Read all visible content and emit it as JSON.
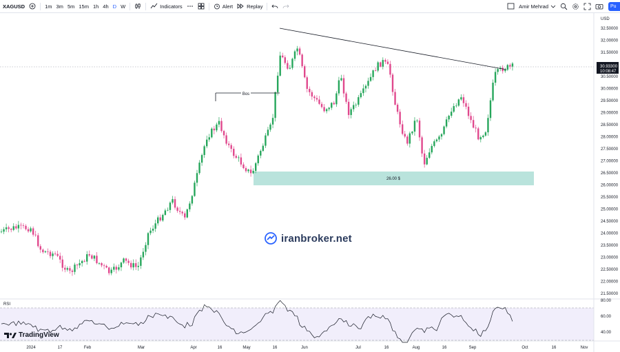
{
  "toolbar": {
    "symbol": "XAGUSD",
    "intervals": [
      "1m",
      "3m",
      "5m",
      "15m",
      "1h",
      "4h",
      "D",
      "W"
    ],
    "active_interval": "D",
    "indicators_label": "Indicators",
    "alert_label": "Alert",
    "replay_label": "Replay",
    "user_name": "Amir Mehrad",
    "publish_label": "Pu"
  },
  "chart": {
    "currency_label": "USD",
    "price_ticks": [
      "32.50000",
      "32.00000",
      "31.50000",
      "31.00000",
      "30.50000",
      "30.00000",
      "29.50000",
      "29.00000",
      "28.50000",
      "28.00000",
      "27.50000",
      "27.00000",
      "26.50000",
      "26.00000",
      "25.50000",
      "25.00000",
      "24.50000",
      "24.00000",
      "23.50000",
      "23.00000",
      "22.50000",
      "22.00000",
      "21.50000"
    ],
    "last_price": "30.93300",
    "countdown": "10:08:47",
    "support_label": "26.00 $",
    "bos_label": "Bos",
    "rsi_label": "RSI",
    "rsi_ticks": [
      "80.00",
      "60.00",
      "40.00"
    ],
    "date_labels": [
      "2024",
      "17",
      "Feb",
      "Mar",
      "Apr",
      "16",
      "May",
      "16",
      "Jun",
      "Jul",
      "16",
      "Aug",
      "16",
      "Sep",
      "Oct",
      "16",
      "Nov"
    ],
    "watermark_brand": "TradingView",
    "broker_watermark": "iranbroker.net",
    "colors": {
      "up": "#26a65b",
      "down": "#e0488d",
      "zone": "#b9e3dc",
      "rsi_line": "#131722",
      "price_badge": "#131722"
    }
  },
  "chart_data": {
    "type": "candlestick",
    "symbol": "XAGUSD",
    "timeframe": "D",
    "ylim": [
      21.5,
      32.5
    ],
    "trendline": {
      "from": 32.6,
      "to": 30.95
    },
    "support_zone": [
      26.0,
      26.55
    ],
    "bos_level": 29.8,
    "rsi_range": [
      30,
      80
    ]
  }
}
